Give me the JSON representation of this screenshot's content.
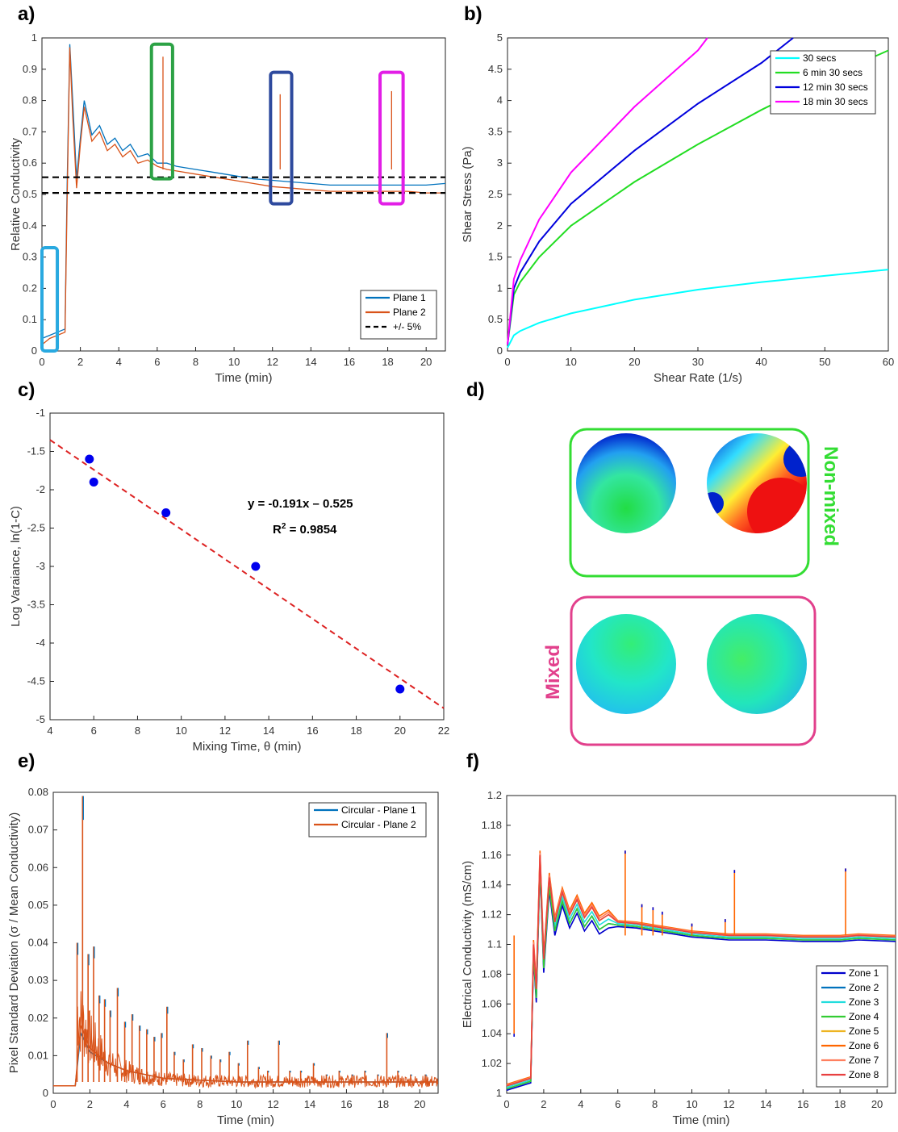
{
  "panels": {
    "a": "a)",
    "b": "b)",
    "c": "c)",
    "d": "d)",
    "e": "e)",
    "f": "f)"
  },
  "chart_data": [
    {
      "id": "a",
      "type": "line",
      "xlabel": "Time (min)",
      "ylabel": "Relative Conductivity",
      "xlim": [
        0,
        21
      ],
      "ylim": [
        0,
        1
      ],
      "xticks": [
        0,
        2,
        4,
        6,
        8,
        10,
        12,
        14,
        16,
        18,
        20
      ],
      "yticks": [
        0,
        0.1,
        0.2,
        0.3,
        0.4,
        0.5,
        0.6,
        0.7,
        0.8,
        0.9,
        1
      ],
      "grid": false,
      "legend_position": "bottom-right",
      "series": [
        {
          "name": "Plane 1",
          "color": "#0072BD",
          "points": [
            [
              0,
              0.04
            ],
            [
              0.4,
              0.05
            ],
            [
              0.8,
              0.06
            ],
            [
              1.2,
              0.07
            ],
            [
              1.3,
              0.5
            ],
            [
              1.45,
              0.98
            ],
            [
              1.6,
              0.8
            ],
            [
              1.8,
              0.55
            ],
            [
              2.0,
              0.68
            ],
            [
              2.2,
              0.8
            ],
            [
              2.6,
              0.69
            ],
            [
              3.0,
              0.72
            ],
            [
              3.4,
              0.66
            ],
            [
              3.8,
              0.68
            ],
            [
              4.2,
              0.64
            ],
            [
              4.6,
              0.66
            ],
            [
              5.0,
              0.62
            ],
            [
              5.5,
              0.63
            ],
            [
              6.0,
              0.6
            ],
            [
              6.5,
              0.6
            ],
            [
              7.0,
              0.59
            ],
            [
              8.0,
              0.58
            ],
            [
              9.0,
              0.57
            ],
            [
              10.0,
              0.56
            ],
            [
              11.0,
              0.55
            ],
            [
              12.0,
              0.545
            ],
            [
              13.0,
              0.54
            ],
            [
              14.0,
              0.535
            ],
            [
              15.0,
              0.53
            ],
            [
              16.0,
              0.53
            ],
            [
              17.0,
              0.53
            ],
            [
              18.0,
              0.53
            ],
            [
              19.0,
              0.53
            ],
            [
              20.0,
              0.53
            ],
            [
              21.0,
              0.535
            ]
          ]
        },
        {
          "name": "Plane 2",
          "color": "#D95319",
          "points": [
            [
              0,
              0.02
            ],
            [
              0.4,
              0.04
            ],
            [
              0.8,
              0.05
            ],
            [
              1.2,
              0.06
            ],
            [
              1.3,
              0.45
            ],
            [
              1.45,
              0.97
            ],
            [
              1.6,
              0.75
            ],
            [
              1.8,
              0.52
            ],
            [
              2.0,
              0.66
            ],
            [
              2.2,
              0.78
            ],
            [
              2.6,
              0.67
            ],
            [
              3.0,
              0.7
            ],
            [
              3.4,
              0.64
            ],
            [
              3.8,
              0.66
            ],
            [
              4.2,
              0.62
            ],
            [
              4.6,
              0.64
            ],
            [
              5.0,
              0.6
            ],
            [
              5.5,
              0.61
            ],
            [
              6.0,
              0.59
            ],
            [
              6.5,
              0.58
            ],
            [
              7.0,
              0.575
            ],
            [
              8.0,
              0.565
            ],
            [
              9.0,
              0.555
            ],
            [
              10.0,
              0.545
            ],
            [
              11.0,
              0.535
            ],
            [
              12.0,
              0.525
            ],
            [
              13.0,
              0.52
            ],
            [
              14.0,
              0.515
            ],
            [
              15.0,
              0.51
            ],
            [
              16.0,
              0.51
            ],
            [
              17.0,
              0.51
            ],
            [
              18.0,
              0.51
            ],
            [
              19.0,
              0.51
            ],
            [
              20.0,
              0.505
            ],
            [
              21.0,
              0.505
            ]
          ]
        },
        {
          "name": "+/- 5%",
          "color": "#000000",
          "dashed": true,
          "points": [
            [
              0,
              0.555
            ],
            [
              21,
              0.555
            ]
          ]
        },
        {
          "name": "",
          "color": "#000000",
          "dashed": true,
          "hide_legend": true,
          "points": [
            [
              0,
              0.505
            ],
            [
              21,
              0.505
            ]
          ]
        }
      ],
      "spikes": [
        [
          6.3,
          0.94
        ],
        [
          12.4,
          0.82
        ],
        [
          18.2,
          0.83
        ]
      ],
      "highlight_boxes": [
        {
          "x": [
            0,
            0.8
          ],
          "y": [
            0.0,
            0.33
          ],
          "color": "#29A9E0"
        },
        {
          "x": [
            5.7,
            6.8
          ],
          "y": [
            0.55,
            0.98
          ],
          "color": "#2CA245"
        },
        {
          "x": [
            11.9,
            13.0
          ],
          "y": [
            0.47,
            0.89
          ],
          "color": "#2E4A9E"
        },
        {
          "x": [
            17.6,
            18.8
          ],
          "y": [
            0.47,
            0.89
          ],
          "color": "#E21EE6"
        }
      ]
    },
    {
      "id": "b",
      "type": "line",
      "xlabel": "Shear Rate (1/s)",
      "ylabel": "Shear Stress (Pa)",
      "xlim": [
        0,
        60
      ],
      "ylim": [
        0,
        5
      ],
      "xticks": [
        0,
        10,
        20,
        30,
        40,
        50,
        60
      ],
      "yticks": [
        0,
        0.5,
        1,
        1.5,
        2,
        2.5,
        3,
        3.5,
        4,
        4.5,
        5
      ],
      "grid": false,
      "legend_position": "top-right",
      "series": [
        {
          "name": "30 secs",
          "color": "#00FFFF",
          "points": [
            [
              0,
              0.05
            ],
            [
              1,
              0.25
            ],
            [
              2,
              0.32
            ],
            [
              5,
              0.45
            ],
            [
              10,
              0.6
            ],
            [
              20,
              0.82
            ],
            [
              30,
              0.98
            ],
            [
              40,
              1.1
            ],
            [
              50,
              1.2
            ],
            [
              60,
              1.3
            ]
          ]
        },
        {
          "name": "6 min 30 secs",
          "color": "#22DD22",
          "points": [
            [
              0,
              0.1
            ],
            [
              1,
              0.9
            ],
            [
              2,
              1.1
            ],
            [
              5,
              1.5
            ],
            [
              10,
              2.0
            ],
            [
              20,
              2.7
            ],
            [
              30,
              3.3
            ],
            [
              40,
              3.85
            ],
            [
              50,
              4.35
            ],
            [
              60,
              4.8
            ]
          ]
        },
        {
          "name": "12 min 30 secs",
          "color": "#0000DD",
          "points": [
            [
              0,
              0.1
            ],
            [
              1,
              1.0
            ],
            [
              2,
              1.25
            ],
            [
              5,
              1.75
            ],
            [
              10,
              2.35
            ],
            [
              20,
              3.2
            ],
            [
              30,
              3.95
            ],
            [
              40,
              4.6
            ],
            [
              45,
              5.0
            ]
          ]
        },
        {
          "name": "18 min 30 secs",
          "color": "#FF00FF",
          "points": [
            [
              0,
              0.1
            ],
            [
              1,
              1.15
            ],
            [
              2,
              1.45
            ],
            [
              5,
              2.1
            ],
            [
              10,
              2.85
            ],
            [
              20,
              3.9
            ],
            [
              30,
              4.8
            ],
            [
              31.5,
              5.0
            ]
          ]
        }
      ]
    },
    {
      "id": "c",
      "type": "scatter",
      "xlabel": "Mixing Time, θ (min)",
      "ylabel": "Log Varaiance, ln(1-C)",
      "xlim": [
        4,
        22
      ],
      "ylim": [
        -5,
        -1
      ],
      "xticks": [
        4,
        6,
        8,
        10,
        12,
        14,
        16,
        18,
        20,
        22
      ],
      "yticks": [
        -1,
        -1.5,
        -2,
        -2.5,
        -3,
        -3.5,
        -4,
        -4.5,
        -5
      ],
      "grid": false,
      "points": [
        [
          5.8,
          -1.6
        ],
        [
          6.0,
          -1.9
        ],
        [
          9.3,
          -2.3
        ],
        [
          13.4,
          -3.0
        ],
        [
          20.0,
          -4.6
        ]
      ],
      "point_color": "#0000EE",
      "trendline": {
        "slope": -0.191,
        "intercept": -0.525,
        "color": "#DD2222"
      },
      "equation": "y = -0.191x – 0.525",
      "r2_prefix": "R",
      "r2_sup": "2",
      "r2_value": " = 0.9854"
    },
    {
      "id": "e",
      "type": "line",
      "xlabel": "Time (min)",
      "ylabel": "Pixel Standard Deviation (σ / Mean Conductivity)",
      "xlim": [
        0,
        21
      ],
      "ylim": [
        0,
        0.08
      ],
      "xticks": [
        0,
        2,
        4,
        6,
        8,
        10,
        12,
        14,
        16,
        18,
        20
      ],
      "yticks": [
        0,
        0.01,
        0.02,
        0.03,
        0.04,
        0.05,
        0.06,
        0.07,
        0.08
      ],
      "grid": false,
      "legend_position": "top-right",
      "series": [
        {
          "name": "Circular - Plane 1",
          "color": "#0072BD",
          "points": [
            [
              0,
              0.002
            ],
            [
              1.2,
              0.002
            ],
            [
              1.5,
              0.016
            ],
            [
              2,
              0.011
            ],
            [
              3,
              0.008
            ],
            [
              4,
              0.006
            ],
            [
              5,
              0.005
            ],
            [
              6,
              0.004
            ],
            [
              8,
              0.0035
            ],
            [
              10,
              0.003
            ],
            [
              14,
              0.003
            ],
            [
              18,
              0.003
            ],
            [
              21,
              0.003
            ]
          ]
        },
        {
          "name": "Circular - Plane 2",
          "color": "#D95319",
          "points": [
            [
              0,
              0.002
            ],
            [
              1.2,
              0.002
            ],
            [
              1.5,
              0.018
            ],
            [
              2,
              0.012
            ],
            [
              3,
              0.008
            ],
            [
              4,
              0.006
            ],
            [
              5,
              0.005
            ],
            [
              6,
              0.004
            ],
            [
              8,
              0.0035
            ],
            [
              10,
              0.003
            ],
            [
              14,
              0.003
            ],
            [
              18,
              0.003
            ],
            [
              21,
              0.003
            ]
          ]
        }
      ],
      "spikes": [
        [
          1.3,
          0.04
        ],
        [
          1.6,
          0.079
        ],
        [
          1.9,
          0.037
        ],
        [
          2.2,
          0.039
        ],
        [
          2.5,
          0.026
        ],
        [
          2.8,
          0.025
        ],
        [
          3.1,
          0.022
        ],
        [
          3.5,
          0.028
        ],
        [
          3.9,
          0.019
        ],
        [
          4.3,
          0.021
        ],
        [
          4.7,
          0.018
        ],
        [
          5.1,
          0.017
        ],
        [
          5.5,
          0.015
        ],
        [
          5.9,
          0.016
        ],
        [
          6.2,
          0.023
        ],
        [
          6.6,
          0.011
        ],
        [
          7.1,
          0.009
        ],
        [
          7.6,
          0.013
        ],
        [
          8.1,
          0.012
        ],
        [
          8.6,
          0.01
        ],
        [
          9.1,
          0.009
        ],
        [
          9.6,
          0.011
        ],
        [
          10.1,
          0.008
        ],
        [
          10.6,
          0.014
        ],
        [
          11.2,
          0.007
        ],
        [
          11.7,
          0.006
        ],
        [
          12.3,
          0.014
        ],
        [
          12.9,
          0.006
        ],
        [
          13.5,
          0.006
        ],
        [
          14.2,
          0.008
        ],
        [
          14.9,
          0.005
        ],
        [
          15.6,
          0.006
        ],
        [
          16.3,
          0.005
        ],
        [
          17.0,
          0.006
        ],
        [
          17.7,
          0.005
        ],
        [
          18.2,
          0.016
        ],
        [
          18.8,
          0.006
        ],
        [
          19.5,
          0.005
        ],
        [
          20.3,
          0.005
        ]
      ]
    },
    {
      "id": "f",
      "type": "line",
      "xlabel": "Time (min)",
      "ylabel": "Electrical Conductivity (mS/cm)",
      "xlim": [
        0,
        21
      ],
      "ylim": [
        1,
        1.2
      ],
      "xticks": [
        0,
        2,
        4,
        6,
        8,
        10,
        12,
        14,
        16,
        18,
        20
      ],
      "yticks": [
        1,
        1.02,
        1.04,
        1.06,
        1.08,
        1.1,
        1.12,
        1.14,
        1.16,
        1.18,
        1.2
      ],
      "grid": false,
      "legend_position": "bottom-right",
      "series": [
        {
          "name": "Zone 1",
          "color": "#0000CC",
          "offset": -0.003
        },
        {
          "name": "Zone 2",
          "color": "#0072BD",
          "offset": -0.002
        },
        {
          "name": "Zone 3",
          "color": "#22DDDD",
          "offset": -0.001
        },
        {
          "name": "Zone 4",
          "color": "#33CC33",
          "offset": -0.002
        },
        {
          "name": "Zone 5",
          "color": "#EEB422",
          "offset": 0.0
        },
        {
          "name": "Zone 6",
          "color": "#FF6600",
          "offset": 0.001
        },
        {
          "name": "Zone 7",
          "color": "#FF8060",
          "offset": 0.0005
        },
        {
          "name": "Zone 8",
          "color": "#E84040",
          "offset": 0.0
        }
      ],
      "base_points": [
        [
          0,
          1.005
        ],
        [
          1.3,
          1.01
        ],
        [
          1.45,
          1.1
        ],
        [
          1.6,
          1.07
        ],
        [
          1.8,
          1.16
        ],
        [
          2.0,
          1.09
        ],
        [
          2.3,
          1.145
        ],
        [
          2.6,
          1.115
        ],
        [
          3.0,
          1.135
        ],
        [
          3.4,
          1.12
        ],
        [
          3.8,
          1.13
        ],
        [
          4.2,
          1.118
        ],
        [
          4.6,
          1.125
        ],
        [
          5.0,
          1.116
        ],
        [
          5.5,
          1.12
        ],
        [
          6.0,
          1.115
        ],
        [
          7.0,
          1.114
        ],
        [
          8.0,
          1.112
        ],
        [
          9.0,
          1.11
        ],
        [
          10.0,
          1.108
        ],
        [
          11.0,
          1.107
        ],
        [
          12.0,
          1.106
        ],
        [
          14.0,
          1.106
        ],
        [
          16.0,
          1.105
        ],
        [
          18.0,
          1.105
        ],
        [
          19.0,
          1.106
        ],
        [
          21.0,
          1.105
        ]
      ],
      "spikes": [
        [
          0.4,
          1.04
        ],
        [
          6.4,
          1.163
        ],
        [
          7.3,
          1.127
        ],
        [
          7.9,
          1.125
        ],
        [
          8.4,
          1.122
        ],
        [
          12.3,
          1.15
        ],
        [
          18.3,
          1.151
        ],
        [
          11.8,
          1.117
        ],
        [
          10.0,
          1.114
        ]
      ]
    }
  ],
  "heatmap": {
    "nonmixed_label": "Non-mixed",
    "mixed_label": "Mixed",
    "nonmixed_color": "#33DD33",
    "mixed_color": "#E2408C"
  }
}
